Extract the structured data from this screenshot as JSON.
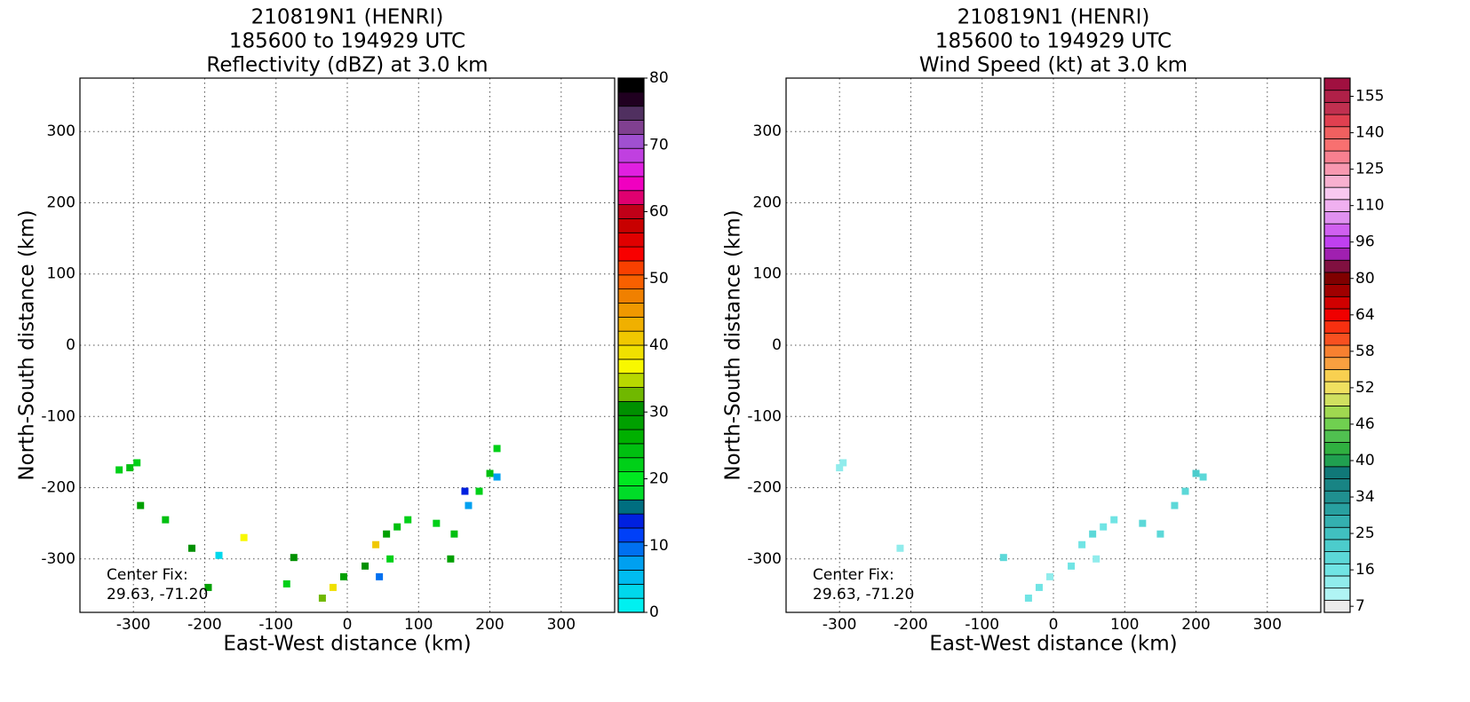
{
  "chart_data": [
    {
      "type": "heatmap",
      "title": [
        "210819N1 (HENRI)",
        "185600 to 194929 UTC",
        "Reflectivity (dBZ) at 3.0 km"
      ],
      "x_label": "East-West distance (km)",
      "y_label": "North-South distance (km)",
      "annotation": [
        "Center Fix:",
        "29.63, -71.20"
      ],
      "xlim": [
        -375,
        375
      ],
      "ylim": [
        -375,
        375
      ],
      "xticks": [
        -300,
        -200,
        -100,
        0,
        100,
        200,
        300
      ],
      "yticks": [
        -300,
        -200,
        -100,
        0,
        100,
        200,
        300
      ],
      "grid": true,
      "x": [
        -320,
        -305,
        -295,
        -290,
        -255,
        -218,
        -145,
        -195,
        -180,
        -75,
        -85,
        -35,
        -20,
        -5,
        25,
        40,
        55,
        70,
        85,
        60,
        45,
        125,
        150,
        145,
        185,
        200,
        210,
        210,
        165,
        170
      ],
      "y": [
        -175,
        -172,
        -165,
        -225,
        -245,
        -285,
        -270,
        -340,
        -295,
        -298,
        -335,
        -355,
        -340,
        -325,
        -310,
        -280,
        -265,
        -255,
        -245,
        -300,
        -325,
        -250,
        -265,
        -300,
        -205,
        -180,
        -185,
        -145,
        -205,
        -225
      ],
      "values": [
        22,
        25,
        22,
        28,
        24,
        30,
        36,
        28,
        3,
        30,
        22,
        32,
        38,
        28,
        30,
        40,
        28,
        25,
        22,
        22,
        10,
        22,
        25,
        28,
        22,
        25,
        8,
        22,
        14,
        8
      ],
      "colorbar": {
        "lim": [
          0,
          80
        ],
        "ticks": [
          0,
          10,
          20,
          30,
          40,
          50,
          60,
          70,
          80
        ],
        "colors": [
          "#00f0f0",
          "#00d8ec",
          "#00bcf0",
          "#00a0f0",
          "#0070f0",
          "#0040f8",
          "#0020e0",
          "#006e80",
          "#00dc28",
          "#00e820",
          "#00d018",
          "#00c010",
          "#00b000",
          "#00a000",
          "#009000",
          "#70b800",
          "#b8d800",
          "#f8f800",
          "#f0e000",
          "#f0c800",
          "#f0b000",
          "#f09800",
          "#f08000",
          "#f86000",
          "#f84000",
          "#f80000",
          "#e00000",
          "#c80000",
          "#c00018",
          "#e00070",
          "#f000c0",
          "#e020e0",
          "#c040e0",
          "#a050d0",
          "#804090",
          "#503060",
          "#200020",
          "#000000"
        ]
      }
    },
    {
      "type": "heatmap",
      "title": [
        "210819N1 (HENRI)",
        "185600 to 194929 UTC",
        "Wind Speed (kt) at 3.0 km"
      ],
      "x_label": "East-West distance (km)",
      "y_label": "North-South distance (km)",
      "annotation": [
        "Center Fix:",
        "29.63, -71.20"
      ],
      "xlim": [
        -375,
        375
      ],
      "ylim": [
        -375,
        375
      ],
      "xticks": [
        -300,
        -200,
        -100,
        0,
        100,
        200,
        300
      ],
      "yticks": [
        -300,
        -200,
        -100,
        0,
        100,
        200,
        300
      ],
      "grid": true,
      "x": [
        -300,
        -295,
        -215,
        -70,
        -35,
        -20,
        -5,
        25,
        40,
        55,
        70,
        85,
        60,
        125,
        150,
        185,
        200,
        210,
        170
      ],
      "y": [
        -172,
        -165,
        -285,
        -298,
        -355,
        -340,
        -325,
        -310,
        -280,
        -265,
        -255,
        -245,
        -300,
        -250,
        -265,
        -205,
        -180,
        -185,
        -225
      ],
      "values": [
        12,
        14,
        13,
        20,
        16,
        15,
        14,
        16,
        17,
        18,
        16,
        15,
        14,
        20,
        18,
        20,
        22,
        20,
        18
      ],
      "colorbar": {
        "ticks": [
          7,
          16,
          25,
          34,
          40,
          46,
          52,
          58,
          64,
          80,
          96,
          110,
          125,
          140,
          155
        ],
        "colors": [
          "#ececec",
          "#b0f4f4",
          "#90ecec",
          "#70e4e4",
          "#5cd8d8",
          "#4ccccc",
          "#40c0c0",
          "#34b0b0",
          "#28a0a0",
          "#209090",
          "#188484",
          "#107878",
          "#20a050",
          "#30b040",
          "#50c050",
          "#70d050",
          "#a0d850",
          "#d0e060",
          "#f0e060",
          "#f8d050",
          "#f8a040",
          "#f88030",
          "#f85020",
          "#f83010",
          "#f00000",
          "#d00000",
          "#a00000",
          "#800000",
          "#801040",
          "#a020b0",
          "#c040f0",
          "#d060f0",
          "#e090f0",
          "#f0b0f0",
          "#f8c8f0",
          "#f8b0d0",
          "#f898b0",
          "#f88090",
          "#f87070",
          "#f06060",
          "#e04050",
          "#c03050",
          "#b02048",
          "#a01040"
        ]
      }
    }
  ]
}
